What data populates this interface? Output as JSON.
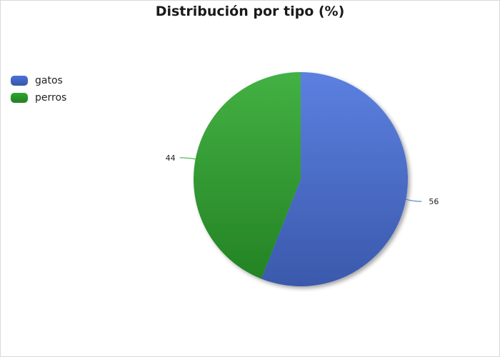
{
  "chart_data": {
    "type": "pie",
    "title": "Distribución por tipo (%)",
    "categories": [
      "gatos",
      "perros"
    ],
    "values": [
      56,
      44
    ],
    "data_labels": [
      "56",
      "44"
    ],
    "colors": [
      "#4a72dc",
      "#2ea82e"
    ],
    "legend_position": "top-left",
    "start_angle": "12 o'clock, clockwise"
  },
  "legend": {
    "items": [
      {
        "label": "gatos",
        "color": "#4a72dc"
      },
      {
        "label": "perros",
        "color": "#2ea82e"
      }
    ]
  }
}
